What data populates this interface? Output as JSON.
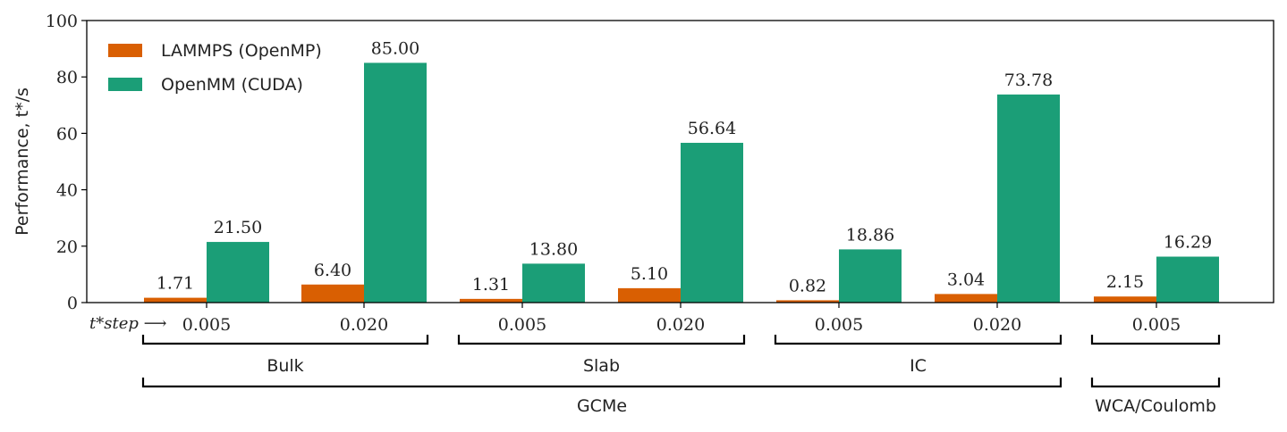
{
  "chart_data": {
    "type": "bar",
    "ylabel": "Performance, t*/s",
    "ylim": [
      0,
      100
    ],
    "yticks": [
      "0",
      "20",
      "40",
      "60",
      "80",
      "100"
    ],
    "x_prefix_label": "t*step ⟶",
    "categories": [
      "0.005",
      "0.020",
      "0.005",
      "0.020",
      "0.005",
      "0.020",
      "0.005"
    ],
    "groups": [
      {
        "name": "Bulk",
        "span": [
          0,
          1
        ]
      },
      {
        "name": "Slab",
        "span": [
          2,
          3
        ]
      },
      {
        "name": "IC",
        "span": [
          4,
          5
        ]
      }
    ],
    "supergroups": [
      {
        "name": "GCMe",
        "span": [
          0,
          5
        ]
      },
      {
        "name": "WCA/Coulomb",
        "span": [
          6,
          6
        ]
      }
    ],
    "series": [
      {
        "name": "LAMMPS (OpenMP)",
        "color": "#d95f02",
        "values": [
          1.71,
          6.4,
          1.31,
          5.1,
          0.82,
          3.04,
          2.15
        ],
        "labels": [
          "1.71",
          "6.40",
          "1.31",
          "5.10",
          "0.82",
          "3.04",
          "2.15"
        ]
      },
      {
        "name": "OpenMM (CUDA)",
        "color": "#1b9e77",
        "values": [
          21.5,
          85.0,
          13.8,
          56.64,
          18.86,
          73.78,
          16.29
        ],
        "labels": [
          "21.50",
          "85.00",
          "13.80",
          "56.64",
          "18.86",
          "73.78",
          "16.29"
        ]
      }
    ],
    "legend_position": "top-left",
    "grid": false
  }
}
